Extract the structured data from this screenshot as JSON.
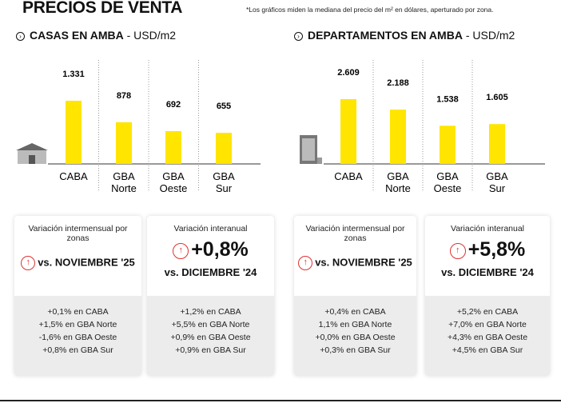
{
  "header": {
    "title": "PRECIOS DE VENTA",
    "note": "*Los gráficos miden la mediana del precio del m² en dólares, aperturado por zona."
  },
  "sections": [
    {
      "title": "CASAS EN AMBA",
      "unit": " - USD/m2",
      "icon": "arrow-right-circle-icon"
    },
    {
      "title": "DEPARTAMENTOS EN AMBA",
      "unit": " - USD/m2",
      "icon": "arrow-right-circle-icon"
    }
  ],
  "chart_data": [
    {
      "type": "bar",
      "title": "CASAS EN AMBA - USD/m2",
      "categories": [
        "CABA",
        "GBA Norte",
        "GBA Oeste",
        "GBA Sur"
      ],
      "values": [
        1331,
        878,
        692,
        655
      ],
      "value_labels": [
        "1.331",
        "878",
        "692",
        "655"
      ],
      "bar_color": "#FFE500",
      "icon": "house-icon"
    },
    {
      "type": "bar",
      "title": "DEPARTAMENTOS EN AMBA - USD/m2",
      "categories": [
        "CABA",
        "GBA Norte",
        "GBA Oeste",
        "GBA Sur"
      ],
      "values": [
        2609,
        2188,
        1538,
        1605
      ],
      "value_labels": [
        "2.609",
        "2.188",
        "1.538",
        "1.605"
      ],
      "bar_color": "#FFE500",
      "icon": "building-icon"
    }
  ],
  "cards": [
    {
      "heading": "Variación intermensual por zonas",
      "big": "",
      "vs": "vs. NOVIEMBRE '25",
      "lines": [
        "+0,1% en CABA",
        "+1,5% en GBA Norte",
        "-1,6% en GBA Oeste",
        "+0,8% en GBA Sur"
      ]
    },
    {
      "heading": "Variación interanual",
      "big": "+0,8%",
      "vs": "vs. DICIEMBRE '24",
      "lines": [
        "+1,2% en CABA",
        "+5,5% en GBA Norte",
        "+0,9% en GBA Oeste",
        "+0,9% en GBA Sur"
      ]
    },
    {
      "heading": "Variación intermensual por zonas",
      "big": "",
      "vs": "vs. NOVIEMBRE '25",
      "lines": [
        "+0,4% en CABA",
        "1,1% en GBA Norte",
        "+0,0% en GBA Oeste",
        "+0,3% en GBA Sur"
      ]
    },
    {
      "heading": "Variación interanual",
      "big": "+5,8%",
      "vs": "vs. DICIEMBRE '24",
      "lines": [
        "+5,2% en CABA",
        "+7,0% en GBA Norte",
        "+4,3% en GBA Oeste",
        "+4,5% en GBA Sur"
      ]
    }
  ],
  "colors": {
    "accent": "#FFE500",
    "up_arrow": "#D33333"
  }
}
